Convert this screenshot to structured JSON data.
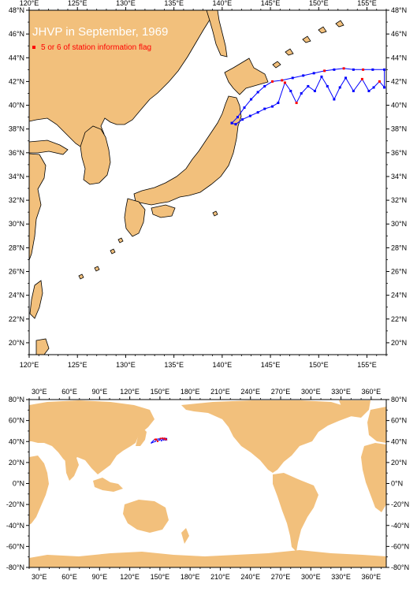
{
  "regional_map": {
    "title": "JHVP in September, 1969",
    "legend_label": "5 or 6 of station information flag",
    "lon_range": [
      120,
      157
    ],
    "lat_range": [
      19,
      48
    ],
    "lon_ticks": [
      "120°E",
      "125°E",
      "130°E",
      "135°E",
      "140°E",
      "145°E",
      "150°E",
      "155°E"
    ],
    "lat_ticks": [
      "20°N",
      "22°N",
      "24°N",
      "26°N",
      "28°N",
      "30°N",
      "32°N",
      "34°N",
      "36°N",
      "38°N",
      "40°N",
      "42°N",
      "44°N",
      "46°N",
      "48°N"
    ]
  },
  "global_map": {
    "lon_ticks": [
      "30°E",
      "60°E",
      "90°E",
      "120°E",
      "150°E",
      "180°E",
      "210°E",
      "240°E",
      "270°E",
      "300°E",
      "330°E",
      "360°E"
    ],
    "lat_ticks": [
      "80°N",
      "60°N",
      "40°N",
      "20°N",
      "0°N",
      "-20°N",
      "-40°N",
      "-60°N",
      "-80°N"
    ]
  },
  "colors": {
    "land": "#f2c07c",
    "track": "#0000ff",
    "flag": "#ff0000",
    "title_text": "#ffffff"
  },
  "track": {
    "stations": [
      {
        "lon": 141.0,
        "lat": 38.5,
        "flag": false
      },
      {
        "lon": 141.6,
        "lat": 39.0,
        "flag": false
      },
      {
        "lon": 142.3,
        "lat": 39.8,
        "flag": false
      },
      {
        "lon": 143.0,
        "lat": 40.5,
        "flag": false
      },
      {
        "lon": 143.7,
        "lat": 41.1,
        "flag": false
      },
      {
        "lon": 144.4,
        "lat": 41.6,
        "flag": false
      },
      {
        "lon": 145.2,
        "lat": 42.0,
        "flag": true
      },
      {
        "lon": 146.2,
        "lat": 42.1,
        "flag": true
      },
      {
        "lon": 147.3,
        "lat": 42.3,
        "flag": false
      },
      {
        "lon": 148.4,
        "lat": 42.5,
        "flag": false
      },
      {
        "lon": 149.5,
        "lat": 42.7,
        "flag": false
      },
      {
        "lon": 150.6,
        "lat": 42.9,
        "flag": true
      },
      {
        "lon": 151.6,
        "lat": 43.0,
        "flag": false
      },
      {
        "lon": 152.6,
        "lat": 43.1,
        "flag": true
      },
      {
        "lon": 153.6,
        "lat": 43.0,
        "flag": false
      },
      {
        "lon": 154.6,
        "lat": 43.0,
        "flag": true
      },
      {
        "lon": 155.6,
        "lat": 43.0,
        "flag": false
      },
      {
        "lon": 156.8,
        "lat": 43.0,
        "flag": false
      }
    ],
    "stations_return": [
      {
        "lon": 156.8,
        "lat": 41.5,
        "flag": false
      },
      {
        "lon": 156.3,
        "lat": 42.0,
        "flag": true
      },
      {
        "lon": 155.7,
        "lat": 41.5,
        "flag": false
      },
      {
        "lon": 155.2,
        "lat": 41.2,
        "flag": false
      },
      {
        "lon": 154.5,
        "lat": 42.2,
        "flag": true
      },
      {
        "lon": 153.6,
        "lat": 41.2,
        "flag": false
      },
      {
        "lon": 152.8,
        "lat": 42.3,
        "flag": false
      },
      {
        "lon": 152.2,
        "lat": 41.5,
        "flag": false
      },
      {
        "lon": 151.6,
        "lat": 40.5,
        "flag": false
      },
      {
        "lon": 150.9,
        "lat": 41.6,
        "flag": false
      },
      {
        "lon": 150.3,
        "lat": 42.4,
        "flag": false
      },
      {
        "lon": 149.6,
        "lat": 41.2,
        "flag": false
      },
      {
        "lon": 148.9,
        "lat": 41.6,
        "flag": false
      },
      {
        "lon": 148.2,
        "lat": 41.0,
        "flag": false
      },
      {
        "lon": 147.7,
        "lat": 40.2,
        "flag": true
      },
      {
        "lon": 147.1,
        "lat": 41.2,
        "flag": false
      },
      {
        "lon": 146.5,
        "lat": 41.9,
        "flag": true
      },
      {
        "lon": 145.8,
        "lat": 40.2,
        "flag": false
      },
      {
        "lon": 145.2,
        "lat": 39.9,
        "flag": false
      },
      {
        "lon": 144.4,
        "lat": 39.7,
        "flag": false
      },
      {
        "lon": 143.7,
        "lat": 39.4,
        "flag": false
      },
      {
        "lon": 142.9,
        "lat": 39.1,
        "flag": false
      },
      {
        "lon": 142.1,
        "lat": 38.8,
        "flag": false
      },
      {
        "lon": 141.4,
        "lat": 38.4,
        "flag": false
      },
      {
        "lon": 141.0,
        "lat": 38.5,
        "flag": false
      }
    ]
  }
}
